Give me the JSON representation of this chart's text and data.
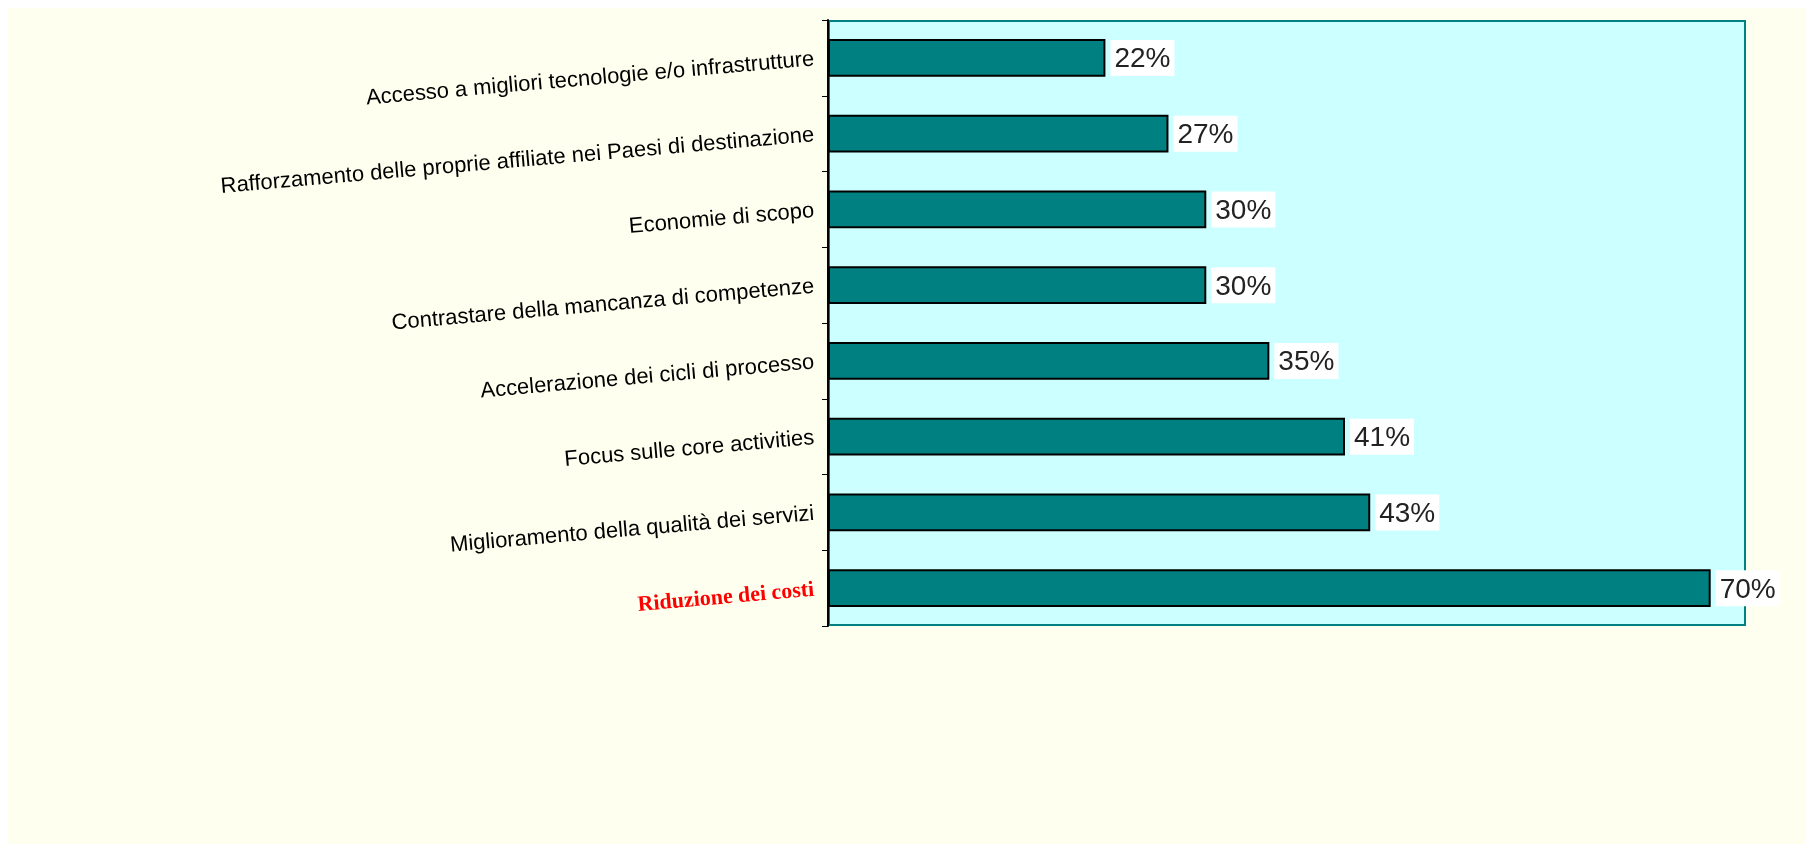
{
  "chart_data": {
    "type": "bar",
    "orientation": "horizontal",
    "categories": [
      "Accesso a migliori tecnologie e/o infrastrutture",
      "Rafforzamento delle proprie affiliate nei Paesi di destinazione",
      "Economie di scopo",
      "Contrastare della mancanza di competenze",
      "Accelerazione dei cicli di processo",
      "Focus sulle core activities",
      "Miglioramento della qualità dei servizi",
      "Riduzione dei costi"
    ],
    "values": [
      22,
      27,
      30,
      30,
      35,
      41,
      43,
      70
    ],
    "color": "#008080",
    "value_labels": [
      "22%",
      "27%",
      "30%",
      "30%",
      "35%",
      "41%",
      "43%",
      "70%"
    ]
  }
}
